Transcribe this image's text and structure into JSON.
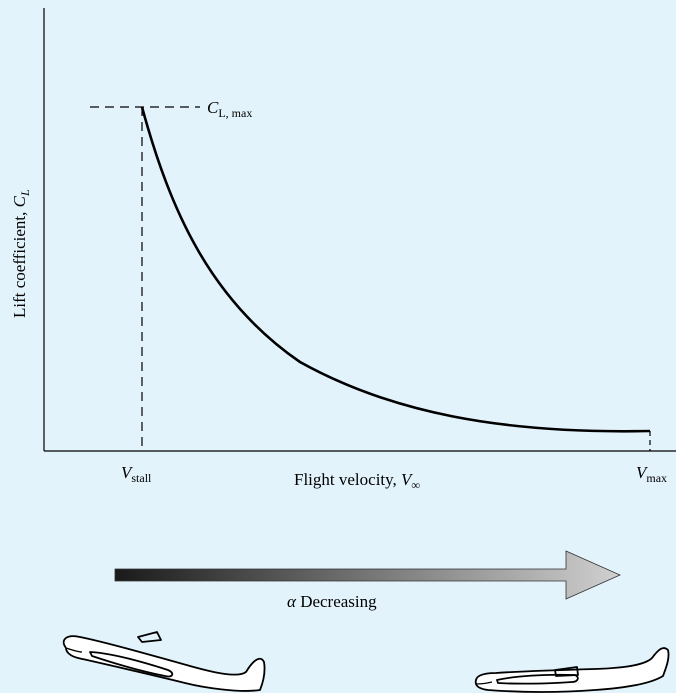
{
  "figure": {
    "ylabel_text": "Lift coefficient, ",
    "ylabel_symbol": "C",
    "ylabel_subscript": "L",
    "xlabel_text": "Flight velocity, ",
    "xlabel_symbol": "V",
    "xlabel_subscript": "∞",
    "clmax_symbol": "C",
    "clmax_subscript": "L, max",
    "vstall_symbol": "V",
    "vstall_subscript": "stall",
    "vmax_symbol": "V",
    "vmax_subscript": "max",
    "arrow_symbol": "α",
    "arrow_text": " Decreasing"
  },
  "colors": {
    "background": "#e3f3fb",
    "line": "#000000",
    "arrow_dark": "#1a1a1a",
    "arrow_light": "#d0d0d0",
    "airplane_fill": "#ffffff"
  },
  "chart_data": {
    "type": "line",
    "grid": false,
    "xlabel": "Flight velocity, V∞",
    "ylabel": "Lift coefficient, CL",
    "x_ticks": [
      "Vstall",
      "Vmax"
    ],
    "annotations": [
      "CL, max",
      "α Decreasing"
    ]
  }
}
